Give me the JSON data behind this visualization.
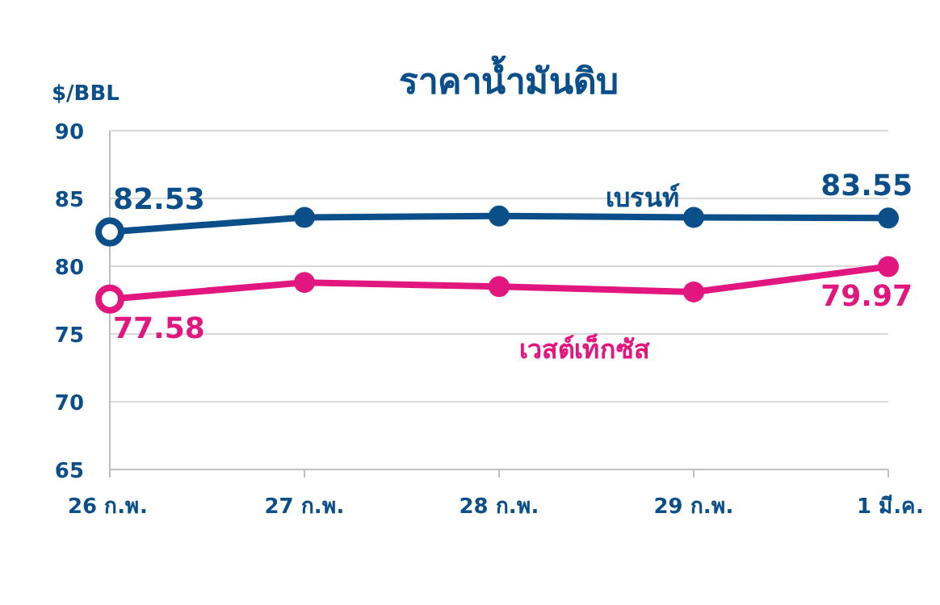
{
  "chart_data": {
    "type": "line",
    "title": "ราคาน้ำมันดิบ",
    "ylabel": "$/BBL",
    "categories": [
      "26 ก.พ.",
      "27 ก.พ.",
      "28 ก.พ.",
      "29 ก.พ.",
      "1 มี.ค."
    ],
    "series": [
      {
        "name": "เบรนท์",
        "color": "#0b4f8a",
        "values": [
          82.53,
          83.6,
          83.7,
          83.6,
          83.55
        ],
        "value_labels": [
          "82.53",
          null,
          null,
          null,
          "83.55"
        ]
      },
      {
        "name": "เวสต์เท็กซัส",
        "color": "#e2167f",
        "values": [
          77.58,
          78.8,
          78.5,
          78.1,
          79.97
        ],
        "value_labels": [
          "77.58",
          null,
          null,
          null,
          "79.97"
        ]
      }
    ],
    "ylim": [
      65,
      90
    ],
    "yticks": [
      65,
      70,
      75,
      80,
      85,
      90
    ],
    "grid": "y",
    "marker": "circle",
    "line_style": "solid"
  }
}
